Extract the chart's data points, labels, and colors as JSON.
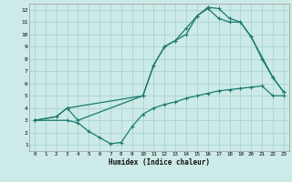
{
  "xlabel": "Humidex (Indice chaleur)",
  "bg_color": "#cceae7",
  "grid_color": "#aad4d0",
  "line_color": "#1a7a6e",
  "xlim": [
    -0.5,
    23.5
  ],
  "ylim": [
    0.5,
    12.5
  ],
  "xticks": [
    0,
    1,
    2,
    3,
    4,
    5,
    6,
    7,
    8,
    9,
    10,
    11,
    12,
    13,
    14,
    15,
    16,
    17,
    18,
    19,
    20,
    21,
    22,
    23
  ],
  "yticks": [
    1,
    2,
    3,
    4,
    5,
    6,
    7,
    8,
    9,
    10,
    11,
    12
  ],
  "line1_x": [
    0,
    2,
    3,
    10,
    11,
    12,
    13,
    14,
    15,
    16,
    17,
    18,
    19,
    20,
    22,
    23
  ],
  "line1_y": [
    3,
    3.3,
    4.0,
    5.0,
    7.5,
    9.0,
    9.5,
    10.5,
    11.5,
    12.2,
    12.1,
    11.3,
    11.0,
    9.8,
    6.5,
    5.3
  ],
  "line2_x": [
    0,
    2,
    3,
    4,
    10,
    11,
    12,
    13,
    14,
    15,
    16,
    17,
    18,
    19,
    20,
    21,
    22,
    23
  ],
  "line2_y": [
    3,
    3.3,
    4.0,
    3.0,
    5.0,
    7.5,
    9.0,
    9.5,
    10.0,
    11.5,
    12.1,
    11.3,
    11.0,
    11.0,
    9.8,
    8.0,
    6.5,
    5.3
  ],
  "line3_x": [
    0,
    3,
    4,
    5,
    6,
    7,
    8,
    9,
    10,
    11,
    12,
    13,
    14,
    15,
    16,
    17,
    18,
    19,
    20,
    21,
    22,
    23
  ],
  "line3_y": [
    3,
    3.0,
    2.8,
    2.1,
    1.6,
    1.1,
    1.2,
    2.5,
    3.5,
    4.0,
    4.3,
    4.5,
    4.8,
    5.0,
    5.2,
    5.4,
    5.5,
    5.6,
    5.7,
    5.8,
    5.0,
    5.0
  ]
}
